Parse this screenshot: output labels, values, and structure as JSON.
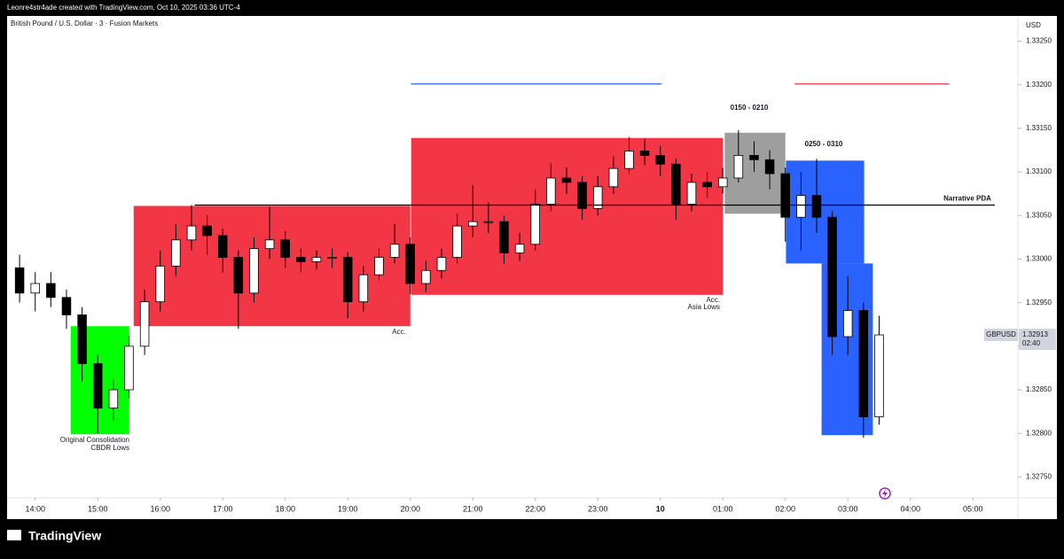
{
  "header": {
    "credit": "Leonre4str4ade created with TradingView.com, Oct 10, 2025 03:36 UTC-4",
    "symbol": "British Pound / U.S. Dollar · 3 · Fusion Markets",
    "currency": "USD"
  },
  "footer": {
    "brand": "TradingView"
  },
  "chart_data": {
    "type": "candlestick",
    "xlim": [
      13.55,
      29.72
    ],
    "ylim": [
      1.32726,
      1.33279
    ],
    "grid": false,
    "up_color": "#ffffff",
    "down_color": "#000000",
    "wick_color": "#000000",
    "xticks": [
      {
        "value": 14,
        "label": "14:00"
      },
      {
        "value": 15,
        "label": "15:00"
      },
      {
        "value": 16,
        "label": "16:00"
      },
      {
        "value": 17,
        "label": "17:00"
      },
      {
        "value": 18,
        "label": "18:00"
      },
      {
        "value": 19,
        "label": "19:00"
      },
      {
        "value": 20,
        "label": "20:00"
      },
      {
        "value": 21,
        "label": "21:00"
      },
      {
        "value": 22,
        "label": "22:00"
      },
      {
        "value": 23,
        "label": "23:00"
      },
      {
        "value": 24,
        "label": "10"
      },
      {
        "value": 25,
        "label": "01:00"
      },
      {
        "value": 26,
        "label": "02:00"
      },
      {
        "value": 27,
        "label": "03:00"
      },
      {
        "value": 28,
        "label": "04:00"
      },
      {
        "value": 29,
        "label": "05:00"
      }
    ],
    "yticks": [
      {
        "value": 1.3275,
        "label": "1.32750"
      },
      {
        "value": 1.328,
        "label": "1.32800"
      },
      {
        "value": 1.3285,
        "label": "1.32850"
      },
      {
        "value": 1.329,
        "label": "1.32900"
      },
      {
        "value": 1.3295,
        "label": "1.32950"
      },
      {
        "value": 1.33,
        "label": "1.33000"
      },
      {
        "value": 1.3305,
        "label": "1.33050"
      },
      {
        "value": 1.331,
        "label": "1.33100"
      },
      {
        "value": 1.3315,
        "label": "1.33150"
      },
      {
        "value": 1.332,
        "label": "1.33200"
      },
      {
        "value": 1.3325,
        "label": "1.33250"
      }
    ],
    "x": [
      13.75,
      14,
      14.25,
      14.5,
      14.75,
      15,
      15.25,
      15.5,
      15.75,
      16,
      16.25,
      16.5,
      16.75,
      17,
      17.25,
      17.5,
      17.75,
      18,
      18.25,
      18.5,
      18.75,
      19,
      19.25,
      19.5,
      19.75,
      20,
      20.25,
      20.5,
      20.75,
      21,
      21.25,
      21.5,
      21.75,
      22,
      22.25,
      22.5,
      22.75,
      23,
      23.25,
      23.5,
      23.75,
      24,
      24.25,
      24.5,
      24.75,
      25,
      25.25,
      25.5,
      25.75,
      26,
      26.25,
      26.5,
      26.75,
      27,
      27.25,
      27.5
    ],
    "open": [
      1.3299,
      1.32961,
      1.32972,
      1.32956,
      1.32936,
      1.3288,
      1.32829,
      1.3285,
      1.329,
      1.32951,
      1.32992,
      1.33022,
      1.33038,
      1.33027,
      1.33002,
      1.32961,
      1.33012,
      1.33022,
      1.33002,
      1.32997,
      1.33002,
      1.33002,
      1.32951,
      1.32982,
      1.33002,
      1.33017,
      1.32972,
      1.32987,
      1.33002,
      1.33038,
      1.33043,
      1.33043,
      1.33007,
      1.33017,
      1.33063,
      1.33093,
      1.33088,
      1.33058,
      1.33083,
      1.33104,
      1.33124,
      1.33119,
      1.33109,
      1.33063,
      1.33088,
      1.33083,
      1.33093,
      1.33119,
      1.33114,
      1.33098,
      1.33048,
      1.33073,
      1.33048,
      1.32911,
      1.32941,
      1.32819
    ],
    "high": [
      1.33005,
      1.32985,
      1.32985,
      1.32965,
      1.32945,
      1.3289,
      1.32862,
      1.32912,
      1.32965,
      1.3301,
      1.3304,
      1.33062,
      1.3305,
      1.33035,
      1.3301,
      1.33025,
      1.3306,
      1.33032,
      1.33012,
      1.3301,
      1.33012,
      1.33008,
      1.32992,
      1.33012,
      1.3304,
      1.33025,
      1.32998,
      1.33012,
      1.33052,
      1.33085,
      1.33065,
      1.3305,
      1.3303,
      1.3308,
      1.3311,
      1.33105,
      1.33095,
      1.33095,
      1.33118,
      1.3314,
      1.33138,
      1.3313,
      1.33115,
      1.33098,
      1.331,
      1.33105,
      1.33148,
      1.33135,
      1.33125,
      1.33105,
      1.331,
      1.33115,
      1.33055,
      1.3298,
      1.3295,
      1.32935
    ],
    "low": [
      1.3295,
      1.3294,
      1.32945,
      1.3292,
      1.3286,
      1.328,
      1.32815,
      1.3284,
      1.3289,
      1.3294,
      1.3298,
      1.3301,
      1.33005,
      1.32985,
      1.3292,
      1.3295,
      1.33,
      1.3299,
      1.32985,
      1.32988,
      1.3299,
      1.32932,
      1.3294,
      1.32975,
      1.32995,
      1.3296,
      1.32962,
      1.32978,
      1.32995,
      1.33025,
      1.3303,
      1.32995,
      1.32998,
      1.3301,
      1.33055,
      1.33075,
      1.33045,
      1.3305,
      1.33075,
      1.33098,
      1.33108,
      1.33095,
      1.33045,
      1.33055,
      1.3307,
      1.33075,
      1.33088,
      1.331,
      1.3308,
      1.3302,
      1.3301,
      1.3303,
      1.3289,
      1.3289,
      1.32795,
      1.3281
    ],
    "close": [
      1.32961,
      1.32972,
      1.32956,
      1.32936,
      1.3288,
      1.32829,
      1.3285,
      1.329,
      1.32951,
      1.32992,
      1.33022,
      1.33038,
      1.33027,
      1.33002,
      1.32961,
      1.33012,
      1.33022,
      1.33002,
      1.32997,
      1.33002,
      1.33002,
      1.32951,
      1.32982,
      1.33002,
      1.33017,
      1.32972,
      1.32987,
      1.33002,
      1.33038,
      1.33043,
      1.33043,
      1.33007,
      1.33017,
      1.33063,
      1.33093,
      1.33088,
      1.33058,
      1.33083,
      1.33104,
      1.33124,
      1.33119,
      1.33109,
      1.33063,
      1.33088,
      1.33083,
      1.33093,
      1.33119,
      1.33114,
      1.33098,
      1.33048,
      1.33073,
      1.33048,
      1.32911,
      1.32941,
      1.32819,
      1.32913
    ],
    "zones": [
      {
        "x": [
          14.567,
          15.504
        ],
        "y": [
          1.32799,
          1.32923
        ],
        "color": "#00ff00"
      },
      {
        "x": [
          15.575,
          20.0
        ],
        "y": [
          1.32923,
          1.33061
        ],
        "color": "#f23645"
      },
      {
        "x": [
          20.014,
          25.0
        ],
        "y": [
          1.32959,
          1.33139
        ],
        "color": "#f23645"
      },
      {
        "x": [
          25.03,
          26.0
        ],
        "y": [
          1.33052,
          1.33145
        ],
        "color": "#9e9e9e"
      },
      {
        "x": [
          26.01,
          27.26
        ],
        "y": [
          1.32995,
          1.33113
        ],
        "color": "#2962ff"
      },
      {
        "x": [
          26.58,
          27.4
        ],
        "y": [
          1.32798,
          1.32995
        ],
        "color": "#2962ff"
      }
    ],
    "levels": [
      {
        "y": 1.33062,
        "x": [
          16.55,
          29.35
        ],
        "color": "#000000",
        "label": "Narrative PDA"
      },
      {
        "y": 1.33201,
        "x": [
          20.01,
          24.02
        ],
        "color": "#2962ff"
      },
      {
        "y": 1.33201,
        "x": [
          26.15,
          28.62
        ],
        "color": "#f23645"
      }
    ],
    "annotations": [
      "Acc.",
      "Acc.",
      "Asia Lows",
      "Original Consolidation",
      "CBDR Lows",
      "0150 - 0210",
      "0250 - 0310"
    ],
    "last_price": {
      "symbol": "GBPUSD",
      "value": 1.32913,
      "countdown": "02:40"
    }
  }
}
